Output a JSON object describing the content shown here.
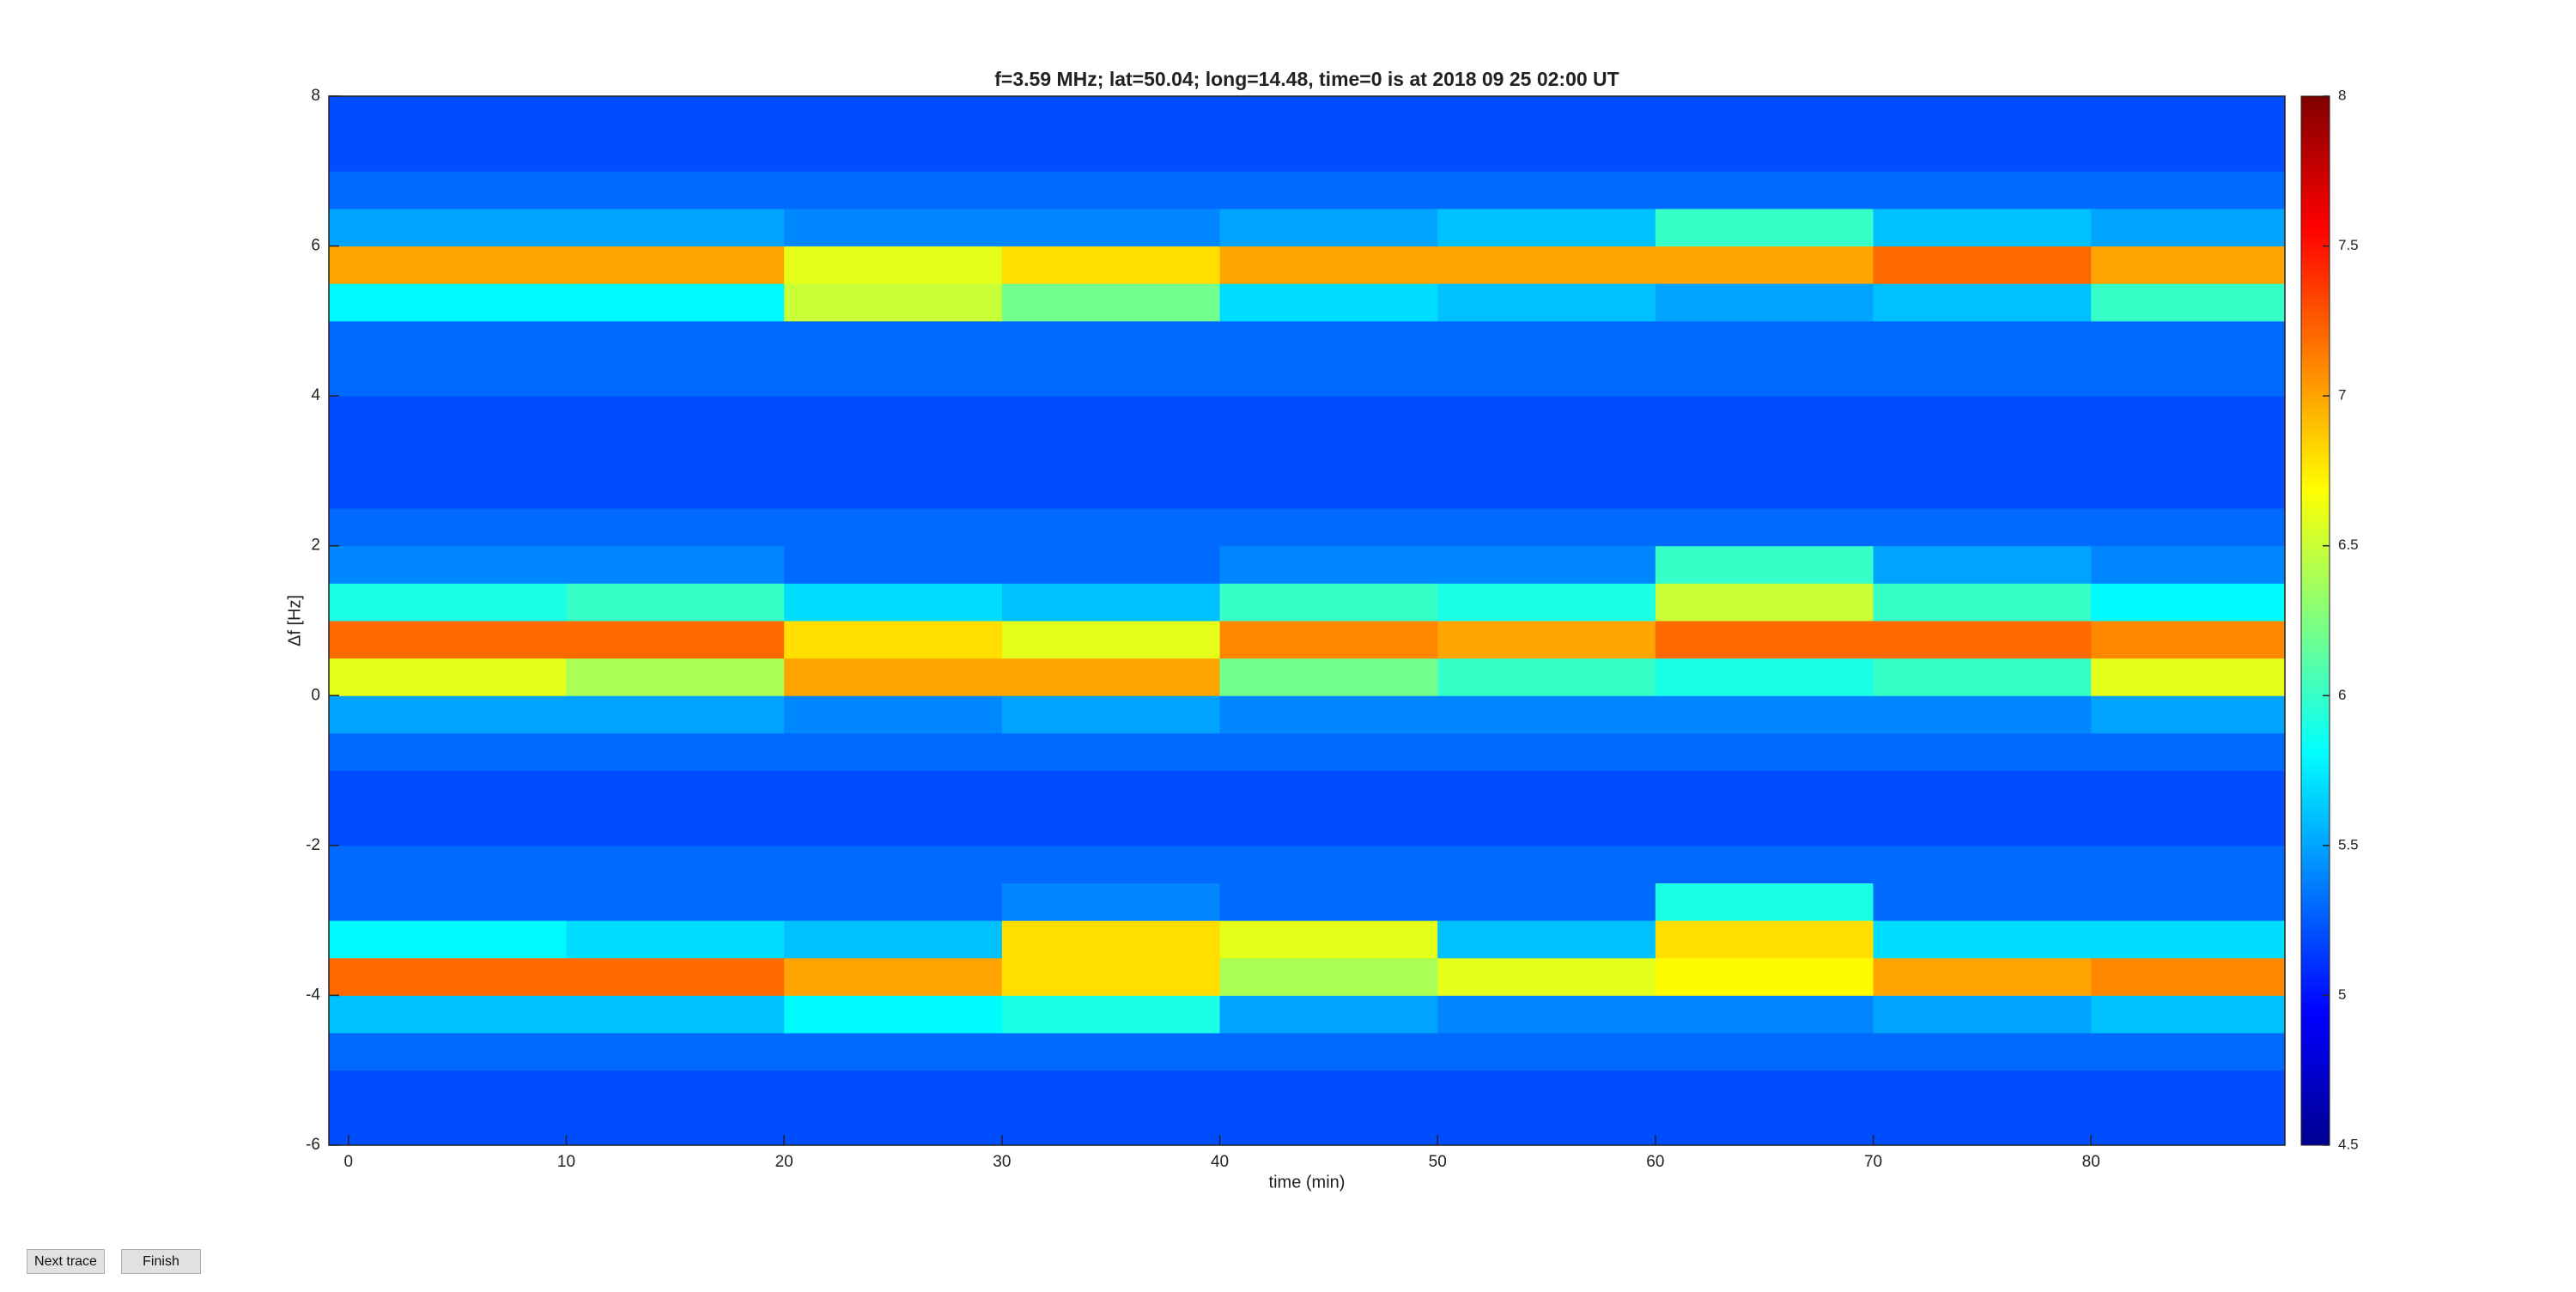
{
  "chart_data": {
    "type": "heatmap",
    "title": "f=3.59 MHz;  lat=50.04; long=14.48, time=0 is at 2018 09 25 02:00 UT",
    "xlabel": "time (min)",
    "ylabel": "Δf [Hz]",
    "xlim": [
      -0.9,
      88.9
    ],
    "ylim": [
      -6,
      8
    ],
    "xticks": [
      0,
      10,
      20,
      30,
      40,
      50,
      60,
      70,
      80
    ],
    "yticks": [
      -6,
      -4,
      -2,
      0,
      2,
      4,
      6,
      8
    ],
    "xbins": [
      -0.9,
      10,
      20,
      30,
      40,
      50,
      60,
      70,
      80,
      88.9
    ],
    "ybins": [
      -6,
      -5.5,
      -5,
      -4.5,
      -4,
      -3.5,
      -3,
      -2.5,
      -2,
      -1.5,
      -1,
      -0.5,
      0,
      0.5,
      1,
      1.5,
      2,
      2.5,
      3,
      3.5,
      4,
      4.5,
      5,
      5.5,
      6,
      6.5,
      7,
      7.5,
      8
    ],
    "z": [
      [
        5.2,
        5.2,
        5.2,
        5.2,
        5.2,
        5.2,
        5.2,
        5.2,
        5.2
      ],
      [
        5.2,
        5.2,
        5.2,
        5.2,
        5.2,
        5.2,
        5.2,
        5.2,
        5.2
      ],
      [
        5.3,
        5.3,
        5.3,
        5.3,
        5.3,
        5.3,
        5.3,
        5.3,
        5.3
      ],
      [
        5.6,
        5.6,
        5.8,
        5.9,
        5.5,
        5.4,
        5.4,
        5.5,
        5.6
      ],
      [
        7.2,
        7.2,
        7.0,
        6.8,
        6.4,
        6.6,
        6.7,
        7.0,
        7.1
      ],
      [
        5.8,
        5.7,
        5.6,
        6.8,
        6.6,
        5.6,
        6.8,
        5.7,
        5.7
      ],
      [
        5.3,
        5.3,
        5.3,
        5.4,
        5.3,
        5.3,
        5.9,
        5.3,
        5.3
      ],
      [
        5.3,
        5.3,
        5.3,
        5.3,
        5.3,
        5.3,
        5.3,
        5.3,
        5.3
      ],
      [
        5.2,
        5.2,
        5.2,
        5.2,
        5.2,
        5.2,
        5.2,
        5.2,
        5.2
      ],
      [
        5.2,
        5.2,
        5.2,
        5.2,
        5.2,
        5.2,
        5.2,
        5.2,
        5.2
      ],
      [
        5.3,
        5.3,
        5.3,
        5.3,
        5.3,
        5.3,
        5.3,
        5.3,
        5.3
      ],
      [
        5.5,
        5.5,
        5.4,
        5.5,
        5.4,
        5.4,
        5.4,
        5.4,
        5.5
      ],
      [
        6.6,
        6.4,
        7.0,
        7.0,
        6.2,
        6.0,
        5.9,
        6.0,
        6.6
      ],
      [
        7.2,
        7.2,
        6.8,
        6.6,
        7.1,
        7.0,
        7.2,
        7.2,
        7.1
      ],
      [
        5.9,
        6.0,
        5.7,
        5.6,
        6.0,
        5.9,
        6.5,
        6.0,
        5.8
      ],
      [
        5.4,
        5.4,
        5.3,
        5.3,
        5.4,
        5.4,
        6.0,
        5.5,
        5.4
      ],
      [
        5.3,
        5.3,
        5.3,
        5.3,
        5.3,
        5.3,
        5.3,
        5.3,
        5.3
      ],
      [
        5.2,
        5.2,
        5.2,
        5.2,
        5.2,
        5.2,
        5.2,
        5.2,
        5.2
      ],
      [
        5.2,
        5.2,
        5.2,
        5.2,
        5.2,
        5.2,
        5.2,
        5.2,
        5.2
      ],
      [
        5.2,
        5.2,
        5.2,
        5.2,
        5.2,
        5.2,
        5.2,
        5.2,
        5.2
      ],
      [
        5.3,
        5.3,
        5.3,
        5.3,
        5.3,
        5.3,
        5.3,
        5.3,
        5.3
      ],
      [
        5.3,
        5.3,
        5.3,
        5.3,
        5.3,
        5.3,
        5.3,
        5.3,
        5.3
      ],
      [
        5.8,
        5.8,
        6.5,
        6.2,
        5.7,
        5.6,
        5.5,
        5.6,
        6.0
      ],
      [
        7.0,
        7.0,
        6.6,
        6.8,
        7.0,
        7.0,
        7.0,
        7.2,
        7.0
      ],
      [
        5.5,
        5.5,
        5.4,
        5.4,
        5.5,
        5.6,
        6.0,
        5.6,
        5.5
      ],
      [
        5.3,
        5.3,
        5.3,
        5.3,
        5.3,
        5.3,
        5.3,
        5.3,
        5.3
      ],
      [
        5.2,
        5.2,
        5.2,
        5.2,
        5.2,
        5.2,
        5.2,
        5.2,
        5.2
      ],
      [
        5.2,
        5.2,
        5.2,
        5.2,
        5.2,
        5.2,
        5.2,
        5.2,
        5.2
      ]
    ],
    "colormap": "jet",
    "clim": [
      4.5,
      8
    ],
    "cticks": [
      4.5,
      5,
      5.5,
      6,
      6.5,
      7,
      7.5,
      8
    ]
  },
  "buttons": [
    "Next trace",
    "Finish"
  ]
}
